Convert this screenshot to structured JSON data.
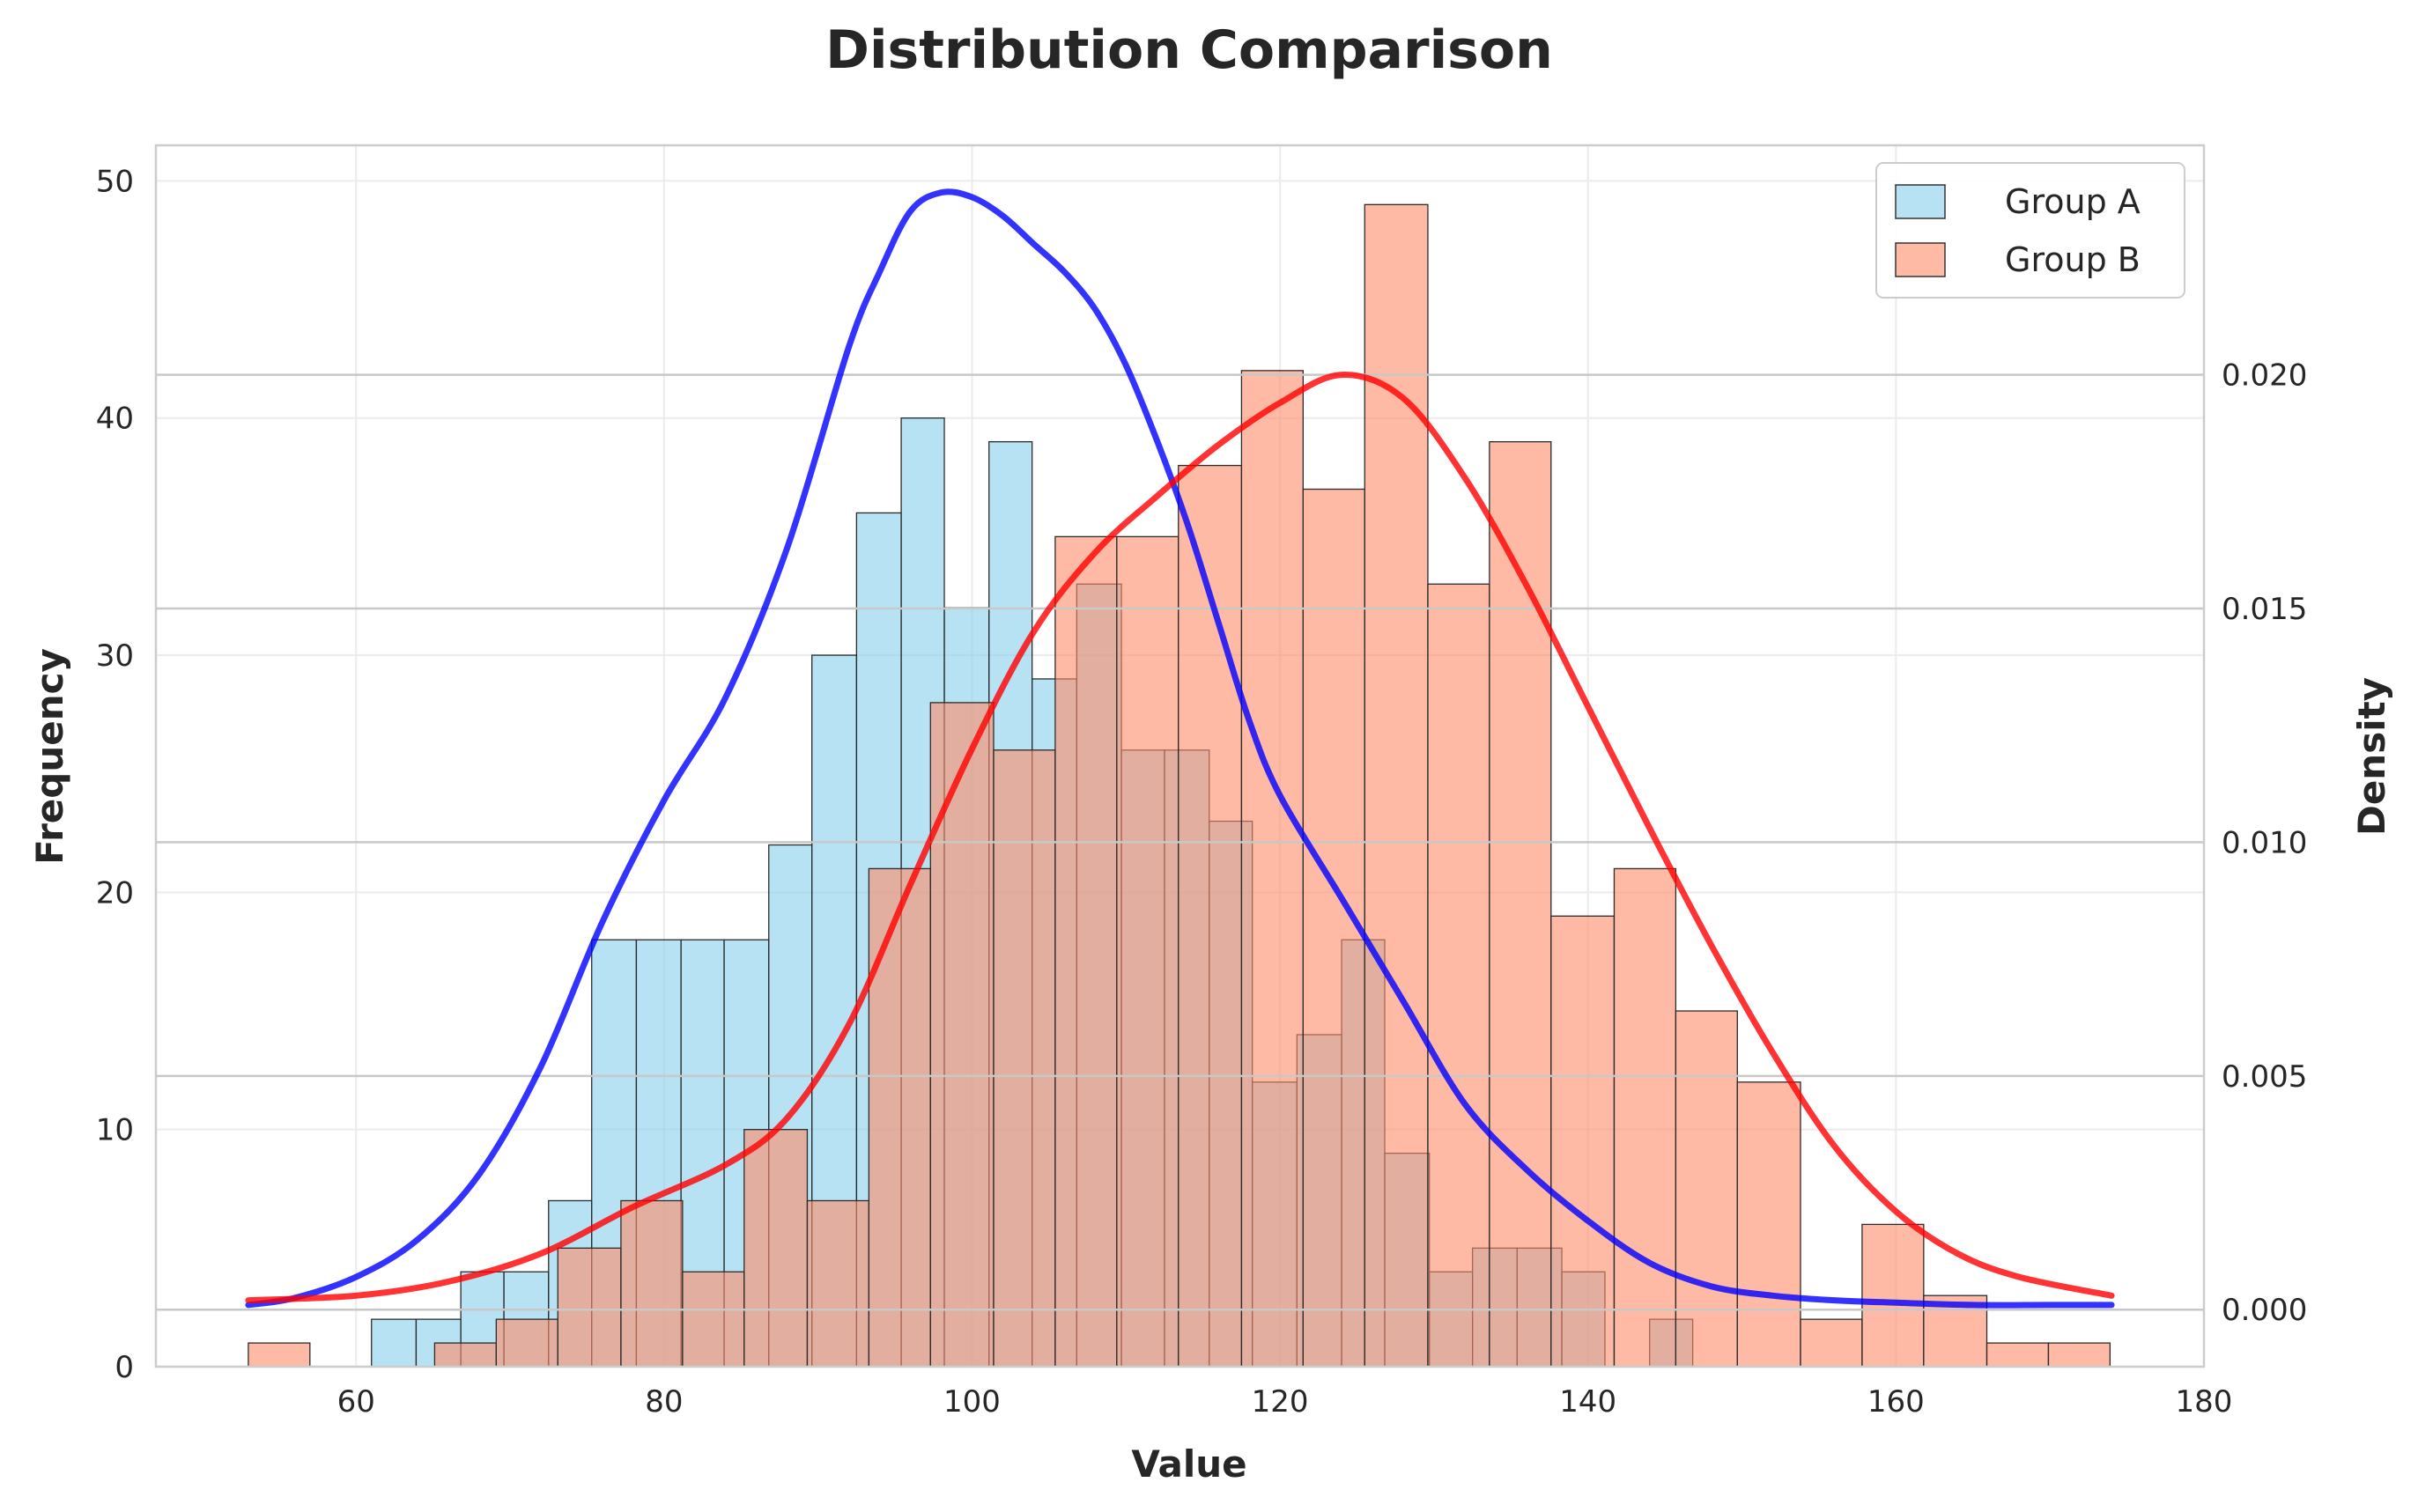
{
  "chart_data": {
    "type": "bar",
    "title": "Distribution Comparison",
    "xlabel": "Value",
    "ylabel": "Frequency",
    "y2label": "Density",
    "xlim": [
      47,
      180
    ],
    "ylim": [
      0,
      51.5
    ],
    "y2lim": [
      -0.00122,
      0.02491
    ],
    "xticks": [
      "60",
      "80",
      "100",
      "120",
      "140",
      "160",
      "180"
    ],
    "yticks": [
      "0",
      "10",
      "20",
      "30",
      "40",
      "50"
    ],
    "y2ticks": [
      "0.000",
      "0.005",
      "0.010",
      "0.015",
      "0.020"
    ],
    "grid": true,
    "legend_position": "top-right",
    "series": [
      {
        "name": "Group A",
        "kind": "histogram",
        "color": "#87CEEB",
        "bins": [
          [
            61.0,
            63.9,
            2
          ],
          [
            63.9,
            66.8,
            2
          ],
          [
            66.8,
            69.6,
            4
          ],
          [
            69.6,
            72.5,
            4
          ],
          [
            72.5,
            75.3,
            7
          ],
          [
            75.3,
            78.2,
            18
          ],
          [
            78.2,
            81.1,
            18
          ],
          [
            81.1,
            83.9,
            18
          ],
          [
            83.9,
            86.8,
            18
          ],
          [
            86.8,
            89.6,
            22
          ],
          [
            89.6,
            92.5,
            30
          ],
          [
            92.5,
            95.4,
            36
          ],
          [
            95.4,
            98.2,
            40
          ],
          [
            98.2,
            101.1,
            32
          ],
          [
            101.1,
            103.9,
            39
          ],
          [
            103.9,
            106.8,
            29
          ],
          [
            106.8,
            109.7,
            33
          ],
          [
            109.7,
            112.5,
            26
          ],
          [
            112.5,
            115.4,
            26
          ],
          [
            115.4,
            118.2,
            23
          ],
          [
            118.2,
            121.1,
            12
          ],
          [
            121.1,
            124.0,
            14
          ],
          [
            124.0,
            126.8,
            18
          ],
          [
            126.8,
            129.7,
            9
          ],
          [
            129.7,
            132.5,
            4
          ],
          [
            132.5,
            135.4,
            5
          ],
          [
            135.4,
            138.3,
            5
          ],
          [
            138.3,
            141.1,
            4
          ],
          [
            144.0,
            146.8,
            2
          ]
        ]
      },
      {
        "name": "Group B",
        "kind": "histogram",
        "color": "#FF8C69",
        "bins": [
          [
            53.0,
            57.0,
            1
          ],
          [
            65.1,
            69.1,
            1
          ],
          [
            69.1,
            73.1,
            2
          ],
          [
            73.1,
            77.2,
            5
          ],
          [
            77.2,
            81.2,
            7
          ],
          [
            81.2,
            85.2,
            4
          ],
          [
            85.2,
            89.3,
            10
          ],
          [
            89.3,
            93.3,
            7
          ],
          [
            93.3,
            97.3,
            21
          ],
          [
            97.3,
            101.4,
            28
          ],
          [
            101.4,
            105.4,
            26
          ],
          [
            105.4,
            109.4,
            35
          ],
          [
            109.4,
            113.4,
            35
          ],
          [
            113.4,
            117.5,
            38
          ],
          [
            117.5,
            121.5,
            42
          ],
          [
            121.5,
            125.5,
            37
          ],
          [
            125.5,
            129.6,
            49
          ],
          [
            129.6,
            133.6,
            33
          ],
          [
            133.6,
            137.6,
            39
          ],
          [
            137.6,
            141.7,
            19
          ],
          [
            141.7,
            145.7,
            21
          ],
          [
            145.7,
            149.7,
            15
          ],
          [
            149.7,
            153.8,
            12
          ],
          [
            153.8,
            157.8,
            2
          ],
          [
            157.8,
            161.8,
            6
          ],
          [
            161.8,
            165.9,
            3
          ],
          [
            165.9,
            169.9,
            1
          ],
          [
            169.9,
            173.9,
            1
          ]
        ]
      },
      {
        "kind": "density",
        "color": "#0000FF",
        "x": [
          53,
          56,
          60,
          64,
          68,
          72,
          76,
          80,
          84,
          88,
          92,
          94,
          96,
          98,
          100,
          102,
          104,
          106,
          108,
          110,
          112,
          114,
          116,
          118,
          120,
          124,
          128,
          132,
          136,
          140,
          144,
          148,
          152,
          156,
          160,
          165,
          170,
          174
        ],
        "y": [
          0.0001,
          0.00025,
          0.0007,
          0.0015,
          0.0029,
          0.0052,
          0.0083,
          0.0109,
          0.0131,
          0.0163,
          0.0206,
          0.0222,
          0.0235,
          0.0239,
          0.0238,
          0.0234,
          0.0228,
          0.0222,
          0.0214,
          0.0202,
          0.0186,
          0.0168,
          0.0147,
          0.0126,
          0.011,
          0.0088,
          0.0066,
          0.0044,
          0.003,
          0.0019,
          0.001,
          0.0005,
          0.0003,
          0.0002,
          0.00015,
          0.0001,
          0.0001,
          0.0001
        ]
      },
      {
        "kind": "density",
        "color": "#FF0000",
        "x": [
          53,
          60,
          66,
          72,
          78,
          84,
          88,
          92,
          96,
          100,
          104,
          108,
          112,
          116,
          120,
          124,
          128,
          132,
          136,
          140,
          144,
          148,
          152,
          156,
          160,
          164,
          168,
          174
        ],
        "y": [
          0.0002,
          0.0003,
          0.0006,
          0.0012,
          0.0022,
          0.0031,
          0.0041,
          0.0061,
          0.0091,
          0.012,
          0.0145,
          0.0162,
          0.0174,
          0.0185,
          0.0194,
          0.02,
          0.0195,
          0.0178,
          0.0155,
          0.0129,
          0.0103,
          0.0078,
          0.0055,
          0.0035,
          0.0021,
          0.0012,
          0.0007,
          0.0003
        ]
      }
    ]
  }
}
